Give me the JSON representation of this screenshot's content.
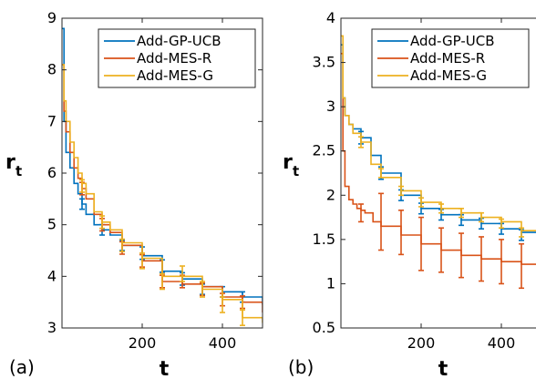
{
  "colors": {
    "Add-GP-UCB": "#0072bd",
    "Add-MES-R": "#d95319",
    "Add-MES-G": "#edb120"
  },
  "chart_data": [
    {
      "type": "line",
      "panel_label": "(a)",
      "xlabel": "t",
      "ylabel": "r",
      "ylabel_sub": "t",
      "xlim": [
        0,
        500
      ],
      "ylim": [
        3,
        9
      ],
      "xticks": [
        200,
        400
      ],
      "yticks": [
        3,
        4,
        5,
        6,
        7,
        8,
        9
      ],
      "grid": false,
      "legend_position": "top-right",
      "series": [
        {
          "name": "Add-GP-UCB",
          "x": [
            0,
            5,
            10,
            20,
            30,
            40,
            50,
            60,
            80,
            100,
            120,
            150,
            200,
            250,
            300,
            350,
            400,
            450,
            500
          ],
          "y": [
            8.8,
            7.0,
            6.4,
            6.1,
            5.8,
            5.6,
            5.4,
            5.2,
            5.0,
            4.9,
            4.8,
            4.6,
            4.4,
            4.1,
            3.95,
            3.8,
            3.7,
            3.6,
            3.45
          ],
          "error_x": [
            50,
            100,
            150,
            200,
            250,
            300,
            350,
            400,
            450
          ],
          "error_y": [
            5.4,
            4.9,
            4.6,
            4.45,
            4.2,
            3.95,
            3.75,
            3.7,
            3.6
          ],
          "error_half": [
            0.1,
            0.1,
            0.1,
            0.12,
            0.12,
            0.12,
            0.1,
            0.1,
            0.1
          ]
        },
        {
          "name": "Add-MES-R",
          "x": [
            0,
            5,
            10,
            20,
            30,
            40,
            50,
            60,
            80,
            100,
            120,
            150,
            200,
            250,
            300,
            350,
            400,
            450,
            500
          ],
          "y": [
            8.1,
            7.2,
            6.8,
            6.4,
            6.1,
            5.9,
            5.7,
            5.5,
            5.2,
            5.0,
            4.85,
            4.6,
            4.3,
            3.9,
            3.85,
            3.8,
            3.6,
            3.5,
            3.3
          ],
          "error_x": [
            50,
            100,
            150,
            200,
            250,
            300,
            350,
            400,
            450
          ],
          "error_y": [
            5.7,
            5.0,
            4.55,
            4.3,
            3.9,
            3.9,
            3.75,
            3.55,
            3.5
          ],
          "error_half": [
            0.12,
            0.12,
            0.12,
            0.12,
            0.12,
            0.12,
            0.12,
            0.12,
            0.12
          ]
        },
        {
          "name": "Add-MES-G",
          "x": [
            0,
            5,
            10,
            20,
            30,
            40,
            50,
            60,
            80,
            100,
            120,
            150,
            200,
            250,
            300,
            350,
            400,
            450,
            500
          ],
          "y": [
            8.1,
            7.4,
            7.0,
            6.6,
            6.3,
            6.0,
            5.8,
            5.6,
            5.25,
            5.05,
            4.9,
            4.65,
            4.35,
            4.0,
            4.0,
            3.75,
            3.55,
            3.2,
            3.1
          ],
          "error_x": [
            50,
            100,
            150,
            200,
            250,
            300,
            350,
            400,
            450
          ],
          "error_y": [
            5.75,
            5.05,
            4.6,
            4.3,
            3.9,
            4.05,
            3.75,
            3.45,
            3.2
          ],
          "error_half": [
            0.12,
            0.12,
            0.12,
            0.15,
            0.15,
            0.15,
            0.15,
            0.15,
            0.15
          ]
        }
      ]
    },
    {
      "type": "line",
      "panel_label": "(b)",
      "xlabel": "t",
      "ylabel": "r",
      "ylabel_sub": "t",
      "xlim": [
        0,
        500
      ],
      "ylim": [
        0.5,
        4
      ],
      "xticks": [
        200,
        400
      ],
      "yticks": [
        0.5,
        1,
        1.5,
        2,
        2.5,
        3,
        3.5,
        4
      ],
      "grid": false,
      "legend_position": "top-right",
      "series": [
        {
          "name": "Add-GP-UCB",
          "x": [
            0,
            5,
            10,
            20,
            30,
            50,
            75,
            100,
            150,
            200,
            250,
            300,
            350,
            400,
            450,
            500
          ],
          "y": [
            3.7,
            3.1,
            2.9,
            2.8,
            2.75,
            2.65,
            2.45,
            2.25,
            2.0,
            1.85,
            1.78,
            1.72,
            1.68,
            1.62,
            1.58,
            1.52
          ],
          "error_x": [
            50,
            100,
            150,
            200,
            250,
            300,
            350,
            400,
            450
          ],
          "error_y": [
            2.65,
            2.25,
            2.0,
            1.85,
            1.78,
            1.72,
            1.68,
            1.62,
            1.55
          ],
          "error_half": [
            0.07,
            0.07,
            0.06,
            0.06,
            0.06,
            0.06,
            0.06,
            0.06,
            0.06
          ]
        },
        {
          "name": "Add-MES-R",
          "x": [
            0,
            5,
            10,
            20,
            30,
            40,
            50,
            60,
            80,
            100,
            150,
            200,
            250,
            300,
            350,
            400,
            450,
            500
          ],
          "y": [
            3.6,
            2.5,
            2.1,
            1.95,
            1.9,
            1.85,
            1.83,
            1.8,
            1.7,
            1.65,
            1.55,
            1.45,
            1.38,
            1.32,
            1.28,
            1.25,
            1.22,
            1.18
          ],
          "error_x": [
            50,
            100,
            150,
            200,
            250,
            300,
            350,
            400,
            450
          ],
          "error_y": [
            1.8,
            1.7,
            1.58,
            1.45,
            1.38,
            1.32,
            1.28,
            1.25,
            1.2
          ],
          "error_half": [
            0.1,
            0.32,
            0.25,
            0.3,
            0.25,
            0.25,
            0.25,
            0.25,
            0.25
          ]
        },
        {
          "name": "Add-MES-G",
          "x": [
            0,
            5,
            10,
            20,
            30,
            50,
            75,
            100,
            150,
            200,
            250,
            300,
            350,
            400,
            450,
            500
          ],
          "y": [
            3.8,
            3.1,
            2.9,
            2.8,
            2.7,
            2.6,
            2.35,
            2.2,
            2.05,
            1.92,
            1.85,
            1.8,
            1.75,
            1.7,
            1.6,
            1.5
          ],
          "error_x": [
            50,
            100,
            150,
            200,
            250,
            300,
            350,
            400,
            450
          ],
          "error_y": [
            2.6,
            2.25,
            2.05,
            1.92,
            1.85,
            1.8,
            1.75,
            1.68,
            1.58
          ],
          "error_half": [
            0.06,
            0.05,
            0.05,
            0.05,
            0.05,
            0.05,
            0.05,
            0.05,
            0.05
          ]
        }
      ]
    }
  ]
}
